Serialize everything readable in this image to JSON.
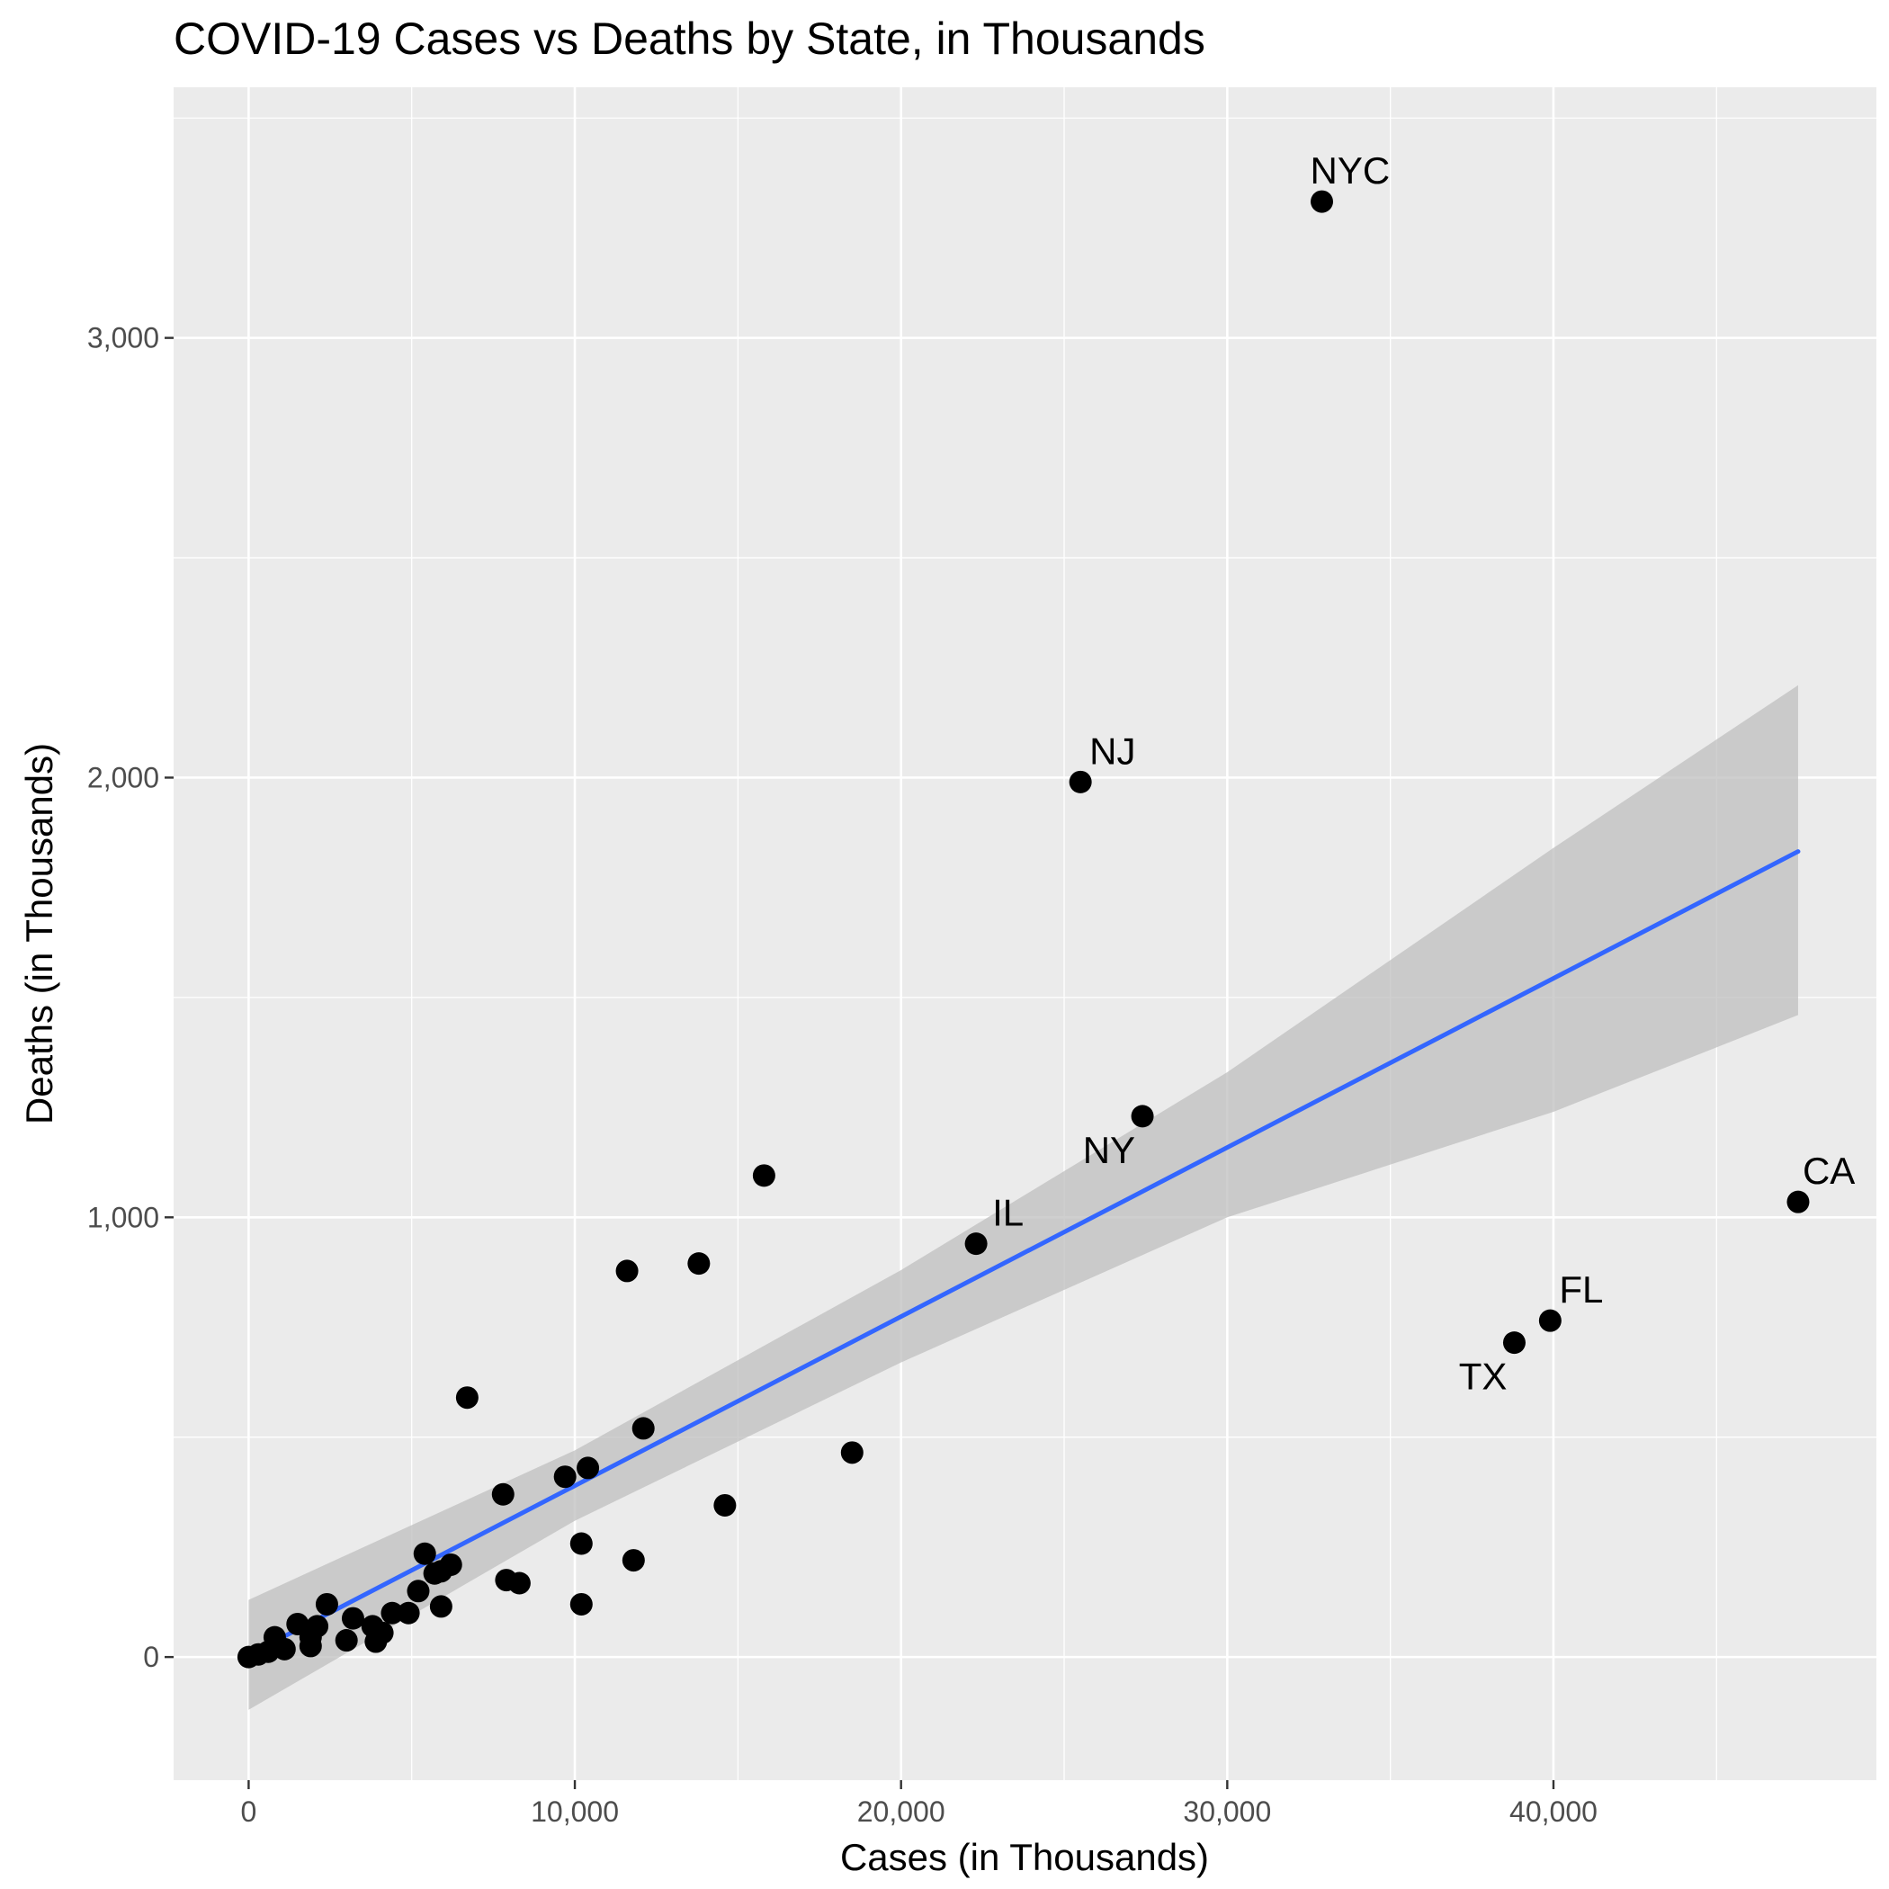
{
  "chart_data": {
    "type": "scatter",
    "title": "COVID-19 Cases vs Deaths by State, in Thousands",
    "xlabel": "Cases (in Thousands)",
    "ylabel": "Deaths (in Thousands)",
    "xlim": [
      -2300,
      49900
    ],
    "ylim": [
      -280,
      3570
    ],
    "x_ticks": [
      0,
      10000,
      20000,
      30000,
      40000
    ],
    "x_tick_labels": [
      "0",
      "10,000",
      "20,000",
      "30,000",
      "40,000"
    ],
    "y_ticks": [
      0,
      1000,
      2000,
      3000
    ],
    "y_tick_labels": [
      "0",
      "1,000",
      "2,000",
      "3,000"
    ],
    "grid": true,
    "colors": {
      "panel": "#ebebeb",
      "grid": "#ffffff",
      "point": "#000000",
      "trend_line": "#3366ff",
      "confidence_band": "#bfbfbf"
    },
    "points": [
      {
        "x": 32900,
        "y": 3310,
        "label": "NYC"
      },
      {
        "x": 25500,
        "y": 1990,
        "label": "NJ"
      },
      {
        "x": 27400,
        "y": 1230,
        "label": "NY"
      },
      {
        "x": 22300,
        "y": 940,
        "label": "IL"
      },
      {
        "x": 47500,
        "y": 1035,
        "label": "CA"
      },
      {
        "x": 39900,
        "y": 765,
        "label": "FL"
      },
      {
        "x": 38800,
        "y": 715,
        "label": "TX"
      },
      {
        "x": 15800,
        "y": 1095,
        "label": ""
      },
      {
        "x": 13800,
        "y": 895,
        "label": ""
      },
      {
        "x": 11600,
        "y": 878,
        "label": ""
      },
      {
        "x": 6700,
        "y": 590,
        "label": ""
      },
      {
        "x": 18500,
        "y": 465,
        "label": ""
      },
      {
        "x": 12100,
        "y": 520,
        "label": ""
      },
      {
        "x": 10400,
        "y": 430,
        "label": ""
      },
      {
        "x": 9700,
        "y": 410,
        "label": ""
      },
      {
        "x": 14600,
        "y": 345,
        "label": ""
      },
      {
        "x": 7800,
        "y": 370,
        "label": ""
      },
      {
        "x": 10200,
        "y": 258,
        "label": ""
      },
      {
        "x": 11800,
        "y": 220,
        "label": ""
      },
      {
        "x": 5400,
        "y": 235,
        "label": ""
      },
      {
        "x": 6200,
        "y": 210,
        "label": ""
      },
      {
        "x": 5900,
        "y": 195,
        "label": ""
      },
      {
        "x": 5700,
        "y": 190,
        "label": ""
      },
      {
        "x": 7900,
        "y": 175,
        "label": ""
      },
      {
        "x": 8300,
        "y": 168,
        "label": ""
      },
      {
        "x": 5200,
        "y": 150,
        "label": ""
      },
      {
        "x": 10200,
        "y": 120,
        "label": ""
      },
      {
        "x": 5900,
        "y": 115,
        "label": ""
      },
      {
        "x": 4400,
        "y": 100,
        "label": ""
      },
      {
        "x": 4900,
        "y": 100,
        "label": ""
      },
      {
        "x": 2400,
        "y": 120,
        "label": ""
      },
      {
        "x": 3200,
        "y": 88,
        "label": ""
      },
      {
        "x": 3800,
        "y": 70,
        "label": ""
      },
      {
        "x": 2100,
        "y": 70,
        "label": ""
      },
      {
        "x": 1500,
        "y": 75,
        "label": ""
      },
      {
        "x": 4100,
        "y": 55,
        "label": ""
      },
      {
        "x": 800,
        "y": 45,
        "label": ""
      },
      {
        "x": 1900,
        "y": 45,
        "label": ""
      },
      {
        "x": 3000,
        "y": 38,
        "label": ""
      },
      {
        "x": 3900,
        "y": 35,
        "label": ""
      },
      {
        "x": 1900,
        "y": 25,
        "label": ""
      },
      {
        "x": 1100,
        "y": 18,
        "label": ""
      },
      {
        "x": 600,
        "y": 12,
        "label": ""
      },
      {
        "x": 300,
        "y": 6,
        "label": ""
      },
      {
        "x": 0,
        "y": 0,
        "label": ""
      }
    ],
    "trend_line": [
      {
        "x": 0,
        "y": 5
      },
      {
        "x": 47500,
        "y": 1832
      }
    ],
    "confidence_band": [
      {
        "x": 0,
        "lower": -120,
        "upper": 130
      },
      {
        "x": 10000,
        "lower": 310,
        "upper": 470
      },
      {
        "x": 20000,
        "lower": 670,
        "upper": 880
      },
      {
        "x": 30000,
        "lower": 1000,
        "upper": 1330
      },
      {
        "x": 40000,
        "lower": 1240,
        "upper": 1840
      },
      {
        "x": 47500,
        "lower": 1460,
        "upper": 2210
      }
    ]
  }
}
